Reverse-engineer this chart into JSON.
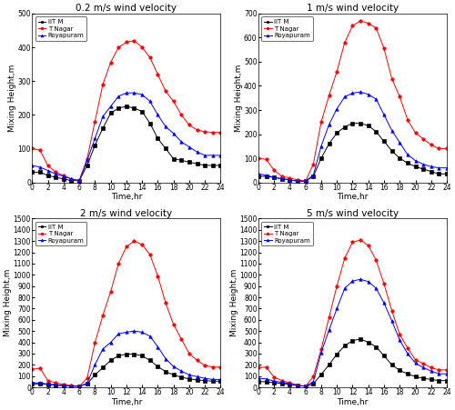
{
  "time": [
    0,
    1,
    2,
    3,
    4,
    5,
    6,
    7,
    8,
    9,
    10,
    11,
    12,
    13,
    14,
    15,
    16,
    17,
    18,
    19,
    20,
    21,
    22,
    23,
    24
  ],
  "subplots": [
    {
      "title": "0.2 m/s wind velocity",
      "ylim": [
        0,
        500
      ],
      "yticks": [
        0,
        100,
        200,
        300,
        400,
        500
      ],
      "IIT_M": [
        30,
        30,
        20,
        15,
        10,
        5,
        5,
        50,
        110,
        160,
        205,
        220,
        225,
        220,
        210,
        175,
        130,
        100,
        70,
        65,
        60,
        55,
        50,
        50,
        50
      ],
      "T_Nagar": [
        100,
        95,
        50,
        30,
        20,
        10,
        5,
        70,
        180,
        290,
        355,
        400,
        415,
        420,
        400,
        370,
        320,
        270,
        240,
        200,
        170,
        155,
        150,
        148,
        148
      ],
      "Royapuram": [
        50,
        45,
        35,
        25,
        18,
        10,
        5,
        65,
        130,
        195,
        225,
        255,
        265,
        265,
        260,
        240,
        200,
        165,
        145,
        120,
        105,
        90,
        80,
        80,
        80
      ]
    },
    {
      "title": "1 m/s wind velocity",
      "ylim": [
        0,
        700
      ],
      "yticks": [
        0,
        100,
        200,
        300,
        400,
        500,
        600,
        700
      ],
      "IIT_M": [
        25,
        25,
        20,
        15,
        10,
        5,
        5,
        25,
        100,
        160,
        205,
        230,
        245,
        245,
        235,
        210,
        170,
        130,
        100,
        80,
        65,
        55,
        45,
        35,
        35
      ],
      "T_Nagar": [
        100,
        95,
        50,
        25,
        18,
        10,
        5,
        75,
        250,
        360,
        460,
        580,
        650,
        670,
        660,
        640,
        555,
        430,
        355,
        260,
        205,
        180,
        155,
        140,
        140
      ],
      "Royapuram": [
        35,
        30,
        20,
        15,
        10,
        5,
        5,
        30,
        150,
        240,
        305,
        355,
        370,
        375,
        365,
        345,
        280,
        215,
        165,
        115,
        90,
        75,
        65,
        60,
        60
      ]
    },
    {
      "title": "2 m/s wind velocity",
      "ylim": [
        0,
        1500
      ],
      "yticks": [
        0,
        100,
        200,
        300,
        400,
        500,
        600,
        700,
        800,
        900,
        1000,
        1100,
        1200,
        1300,
        1400,
        1500
      ],
      "IIT_M": [
        30,
        30,
        25,
        20,
        15,
        10,
        10,
        30,
        110,
        175,
        240,
        280,
        295,
        295,
        280,
        240,
        185,
        140,
        110,
        90,
        75,
        65,
        60,
        55,
        55
      ],
      "T_Nagar": [
        160,
        170,
        60,
        40,
        25,
        15,
        10,
        80,
        395,
        640,
        850,
        1100,
        1250,
        1300,
        1270,
        1180,
        990,
        750,
        560,
        430,
        300,
        240,
        195,
        180,
        180
      ],
      "Royapuram": [
        40,
        38,
        30,
        22,
        15,
        10,
        10,
        35,
        200,
        340,
        400,
        475,
        490,
        500,
        490,
        455,
        360,
        255,
        185,
        145,
        110,
        95,
        80,
        70,
        70
      ]
    },
    {
      "title": "5 m/s wind velocity",
      "ylim": [
        0,
        1500
      ],
      "yticks": [
        0,
        100,
        200,
        300,
        400,
        500,
        600,
        700,
        800,
        900,
        1000,
        1100,
        1200,
        1300,
        1400,
        1500
      ],
      "IIT_M": [
        50,
        50,
        40,
        35,
        25,
        15,
        10,
        30,
        115,
        200,
        295,
        370,
        415,
        430,
        400,
        360,
        280,
        200,
        150,
        120,
        95,
        80,
        70,
        60,
        60
      ],
      "T_Nagar": [
        175,
        180,
        90,
        60,
        40,
        20,
        10,
        95,
        340,
        620,
        900,
        1150,
        1290,
        1310,
        1260,
        1130,
        920,
        680,
        470,
        350,
        245,
        210,
        175,
        155,
        155
      ],
      "Royapuram": [
        80,
        75,
        55,
        45,
        30,
        15,
        10,
        50,
        310,
        510,
        700,
        880,
        945,
        960,
        940,
        880,
        750,
        590,
        420,
        300,
        215,
        175,
        145,
        120,
        120
      ]
    }
  ],
  "colors": {
    "IIT_M": "black",
    "T_Nagar": "red",
    "Royapuram": "blue"
  },
  "markers": {
    "IIT_M": "s",
    "T_Nagar": "o",
    "Royapuram": "^"
  },
  "xlabel": "Time,hr",
  "ylabel": "Mixing Height,m",
  "bg_color": "#ffffff"
}
